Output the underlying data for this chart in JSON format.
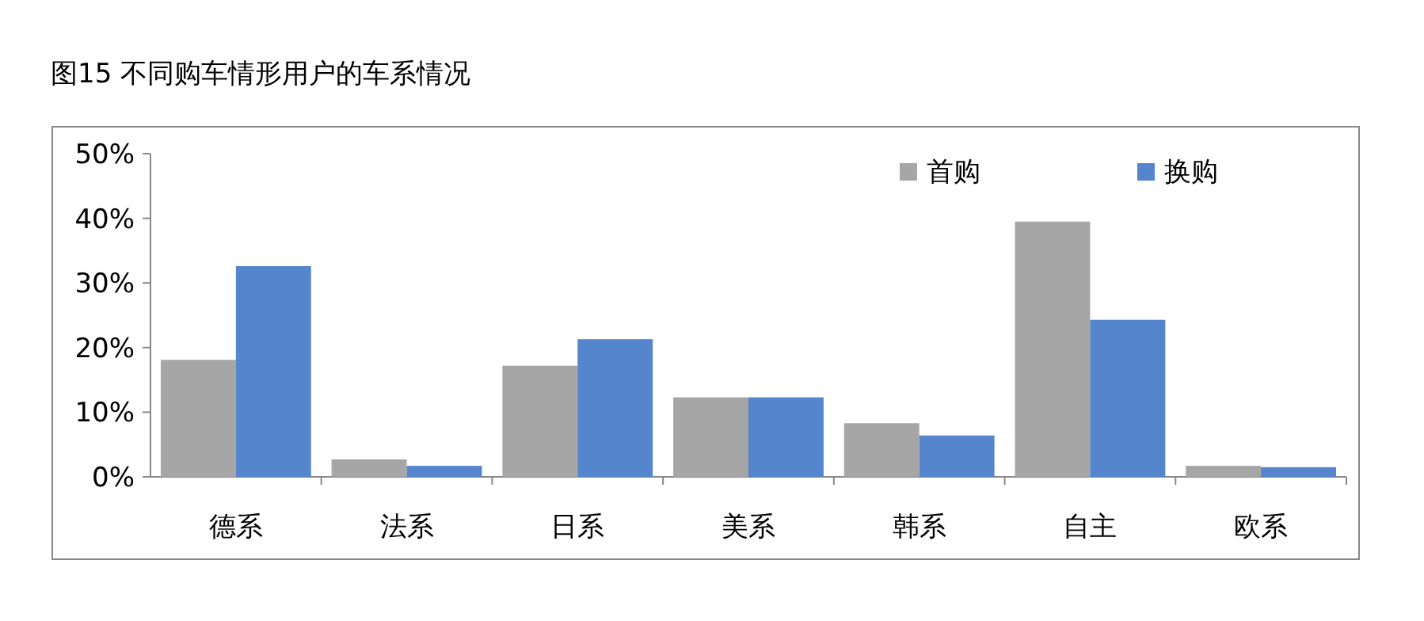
{
  "chart_data": {
    "type": "bar",
    "title": "图15  不同购车情形用户的车系情况",
    "categories": [
      "德系",
      "法系",
      "日系",
      "美系",
      "韩系",
      "自主",
      "欧系"
    ],
    "series": [
      {
        "name": "首购",
        "color": "#a6a6a6",
        "values": [
          18.1,
          2.7,
          17.2,
          12.3,
          8.3,
          39.5,
          1.7
        ]
      },
      {
        "name": "换购",
        "color": "#5585cc",
        "values": [
          32.6,
          1.7,
          21.3,
          12.3,
          6.4,
          24.3,
          1.5
        ]
      }
    ],
    "ylim": [
      0,
      50
    ],
    "yticks": [
      {
        "value": 0,
        "label": "0%"
      },
      {
        "value": 10,
        "label": "10%"
      },
      {
        "value": 20,
        "label": "20%"
      },
      {
        "value": 30,
        "label": "30%"
      },
      {
        "value": 40,
        "label": "40%"
      },
      {
        "value": 50,
        "label": "50%"
      }
    ],
    "legend": "top right",
    "grid": false
  }
}
